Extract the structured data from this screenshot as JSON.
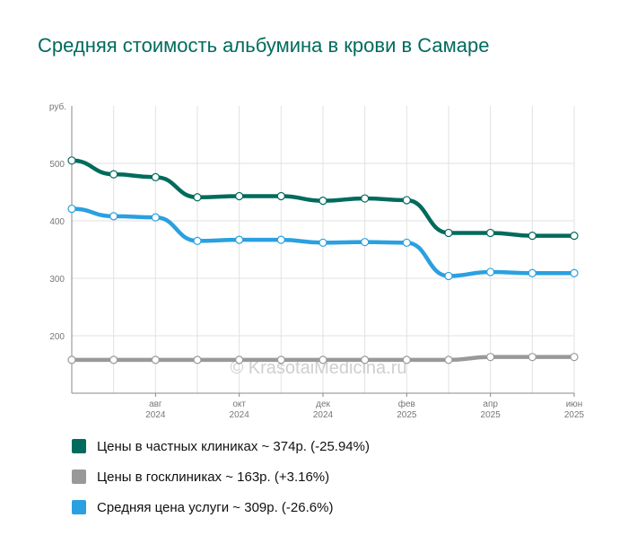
{
  "title": "Средняя стоимость альбумина в крови в Самаре",
  "watermark": "© KrasotaiMedicina.ru",
  "chart_data": {
    "type": "line",
    "y_unit": "руб.",
    "ylim": [
      100,
      600
    ],
    "yticks": [
      200,
      300,
      400,
      500
    ],
    "grid": true,
    "legend_position": "bottom",
    "x": [
      "2024-06",
      "2024-07",
      "2024-08",
      "2024-09",
      "2024-10",
      "2024-11",
      "2024-12",
      "2025-01",
      "2025-02",
      "2025-03",
      "2025-04",
      "2025-05",
      "2025-06"
    ],
    "x_tick_labels": [
      {
        "month": "авг",
        "year": "2024"
      },
      {
        "month": "окт",
        "year": "2024"
      },
      {
        "month": "дек",
        "year": "2024"
      },
      {
        "month": "фев",
        "year": "2025"
      },
      {
        "month": "апр",
        "year": "2025"
      },
      {
        "month": "июн",
        "year": "2025"
      }
    ],
    "series": [
      {
        "name": "Цены в частных клиниках ~ 374р. (-25.94%)",
        "color": "#006b5c",
        "values": [
          505,
          481,
          476,
          441,
          443,
          443,
          435,
          439,
          436,
          379,
          379,
          374,
          374
        ]
      },
      {
        "name": "Цены в госклиниках ~ 163р. (+3.16%)",
        "color": "#999999",
        "values": [
          158,
          158,
          158,
          158,
          158,
          158,
          158,
          158,
          158,
          158,
          163,
          163,
          163
        ]
      },
      {
        "name": "Средняя цена услуги ~ 309р. (-26.6%)",
        "color": "#2aa0e0",
        "values": [
          421,
          408,
          406,
          365,
          367,
          367,
          362,
          363,
          362,
          304,
          311,
          309,
          309
        ]
      }
    ]
  }
}
